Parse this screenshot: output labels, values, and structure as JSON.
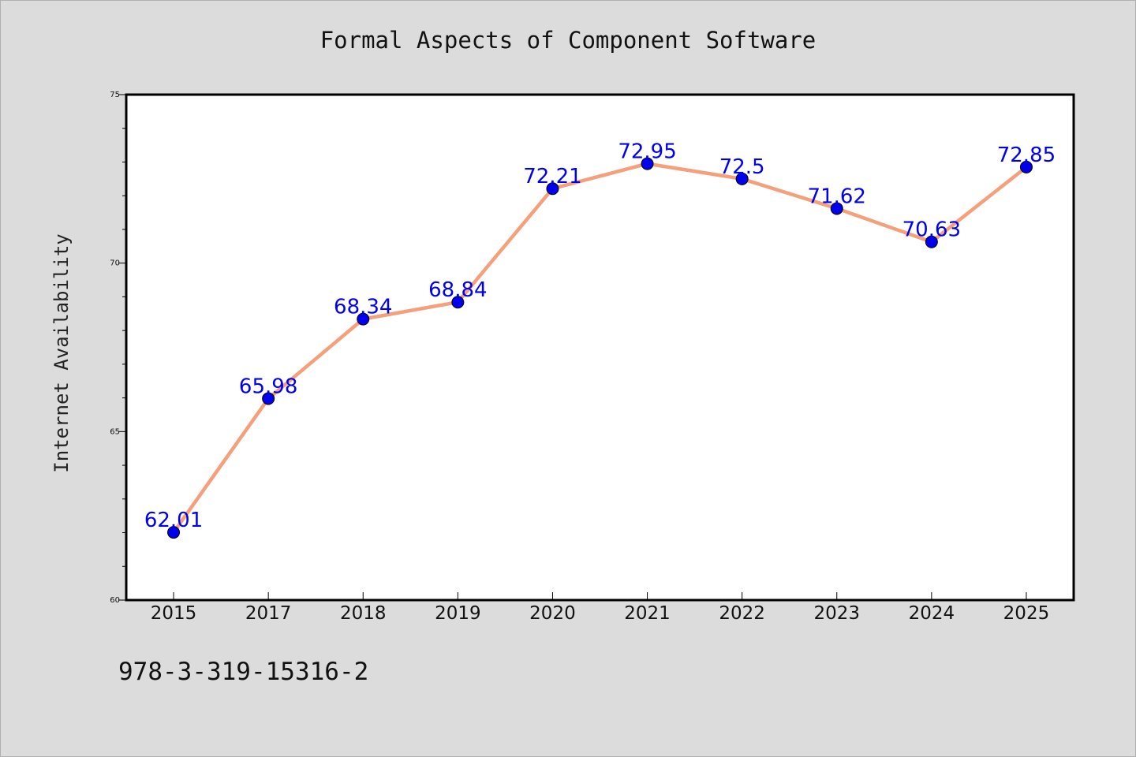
{
  "chart_data": {
    "type": "line",
    "title": "Formal Aspects of Component Software",
    "xlabel": "",
    "ylabel": "Internet Availability",
    "categories": [
      "2015",
      "2017",
      "2018",
      "2019",
      "2020",
      "2021",
      "2022",
      "2023",
      "2024",
      "2025"
    ],
    "series": [
      {
        "values": [
          62.01,
          65.98,
          68.34,
          68.84,
          72.21,
          72.95,
          72.5,
          71.62,
          70.63,
          72.85
        ],
        "labels": [
          "62.01",
          "65.98",
          "68.34",
          "68.84",
          "72.21",
          "72.95",
          "72.5",
          "71.62",
          "70.63",
          "72.85"
        ],
        "line_color": "#f4a07a",
        "marker_color": "#0000ee",
        "label_color": "#0000ee"
      }
    ],
    "ylim": [
      60,
      75
    ],
    "y_ticks": [
      "60",
      "65",
      "70",
      "75"
    ],
    "grid": false,
    "legend": "none"
  },
  "footer": {
    "code": "978-3-319-15316-2"
  },
  "colors": {
    "background": "#dcdcdc",
    "plot_background": "#ffffff",
    "axis": "#000000"
  }
}
